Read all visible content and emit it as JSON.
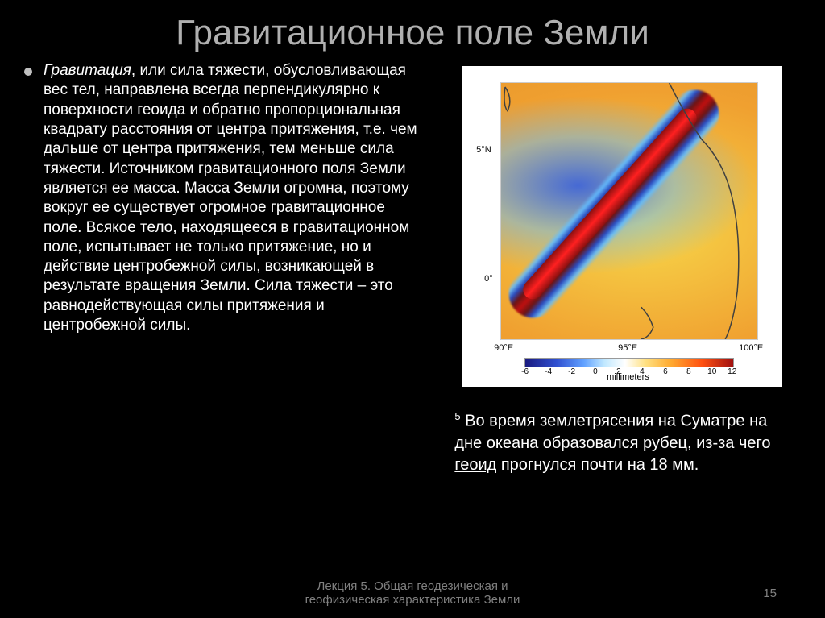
{
  "title": "Гравитационное поле Земли",
  "bullet": {
    "text_html": "<span class='italic'>Гравитация</span>, или сила тяжести, обусловливающая вес тел, направлена всегда перпендикулярно к поверхности геоида и обратно пропорциональная квадрату расстояния от центра притяжения, т.е. чем дальше от центра притяжения, тем меньше сила тяжести. Источником <span class='highlight'>гравитационного поля Земли</span> является ее масса. Масса Земли огромна, поэтому вокруг ее существует огромное гравитационное поле. Всякое тело, находящееся в гравитационном поле, испытывает не только притяжение, но и действие центробежной силы, возникающей в результате вращения Земли. Сила тяжести – это равнодействующая силы притяжения и центробежной силы."
  },
  "caption": {
    "sup": "5",
    "text_before_link": " Во время землетрясения на Суматре на дне океана образовался рубец, из-за чего ",
    "link_text": "геоид",
    "text_after_link": " прогнулся почти на 18 мм."
  },
  "chart": {
    "type": "contour-map",
    "background_color": "#ffffff",
    "x_ticks": [
      "90°E",
      "95°E",
      "100°E"
    ],
    "y_ticks": [
      "5°N",
      "0°"
    ],
    "colorbar": {
      "title": "millimeters",
      "ticks": [
        "-6",
        "-4",
        "-2",
        "0",
        "2",
        "4",
        "6",
        "8",
        "10",
        "12"
      ],
      "gradient_colors": [
        "#1a1a80",
        "#3050d0",
        "#60a0ff",
        "#c0e8ff",
        "#ffffff",
        "#ffe080",
        "#ffaa30",
        "#ff5010",
        "#a01010"
      ]
    },
    "anomaly": {
      "orientation_deg": -48,
      "peak_color": "#ff2020",
      "trough_color": "#2a4cc0"
    }
  },
  "footer": {
    "line1": "Лекция 5. Общая геодезическая и",
    "line2": "геофизическая характеристика Земли"
  },
  "page_number": "15"
}
